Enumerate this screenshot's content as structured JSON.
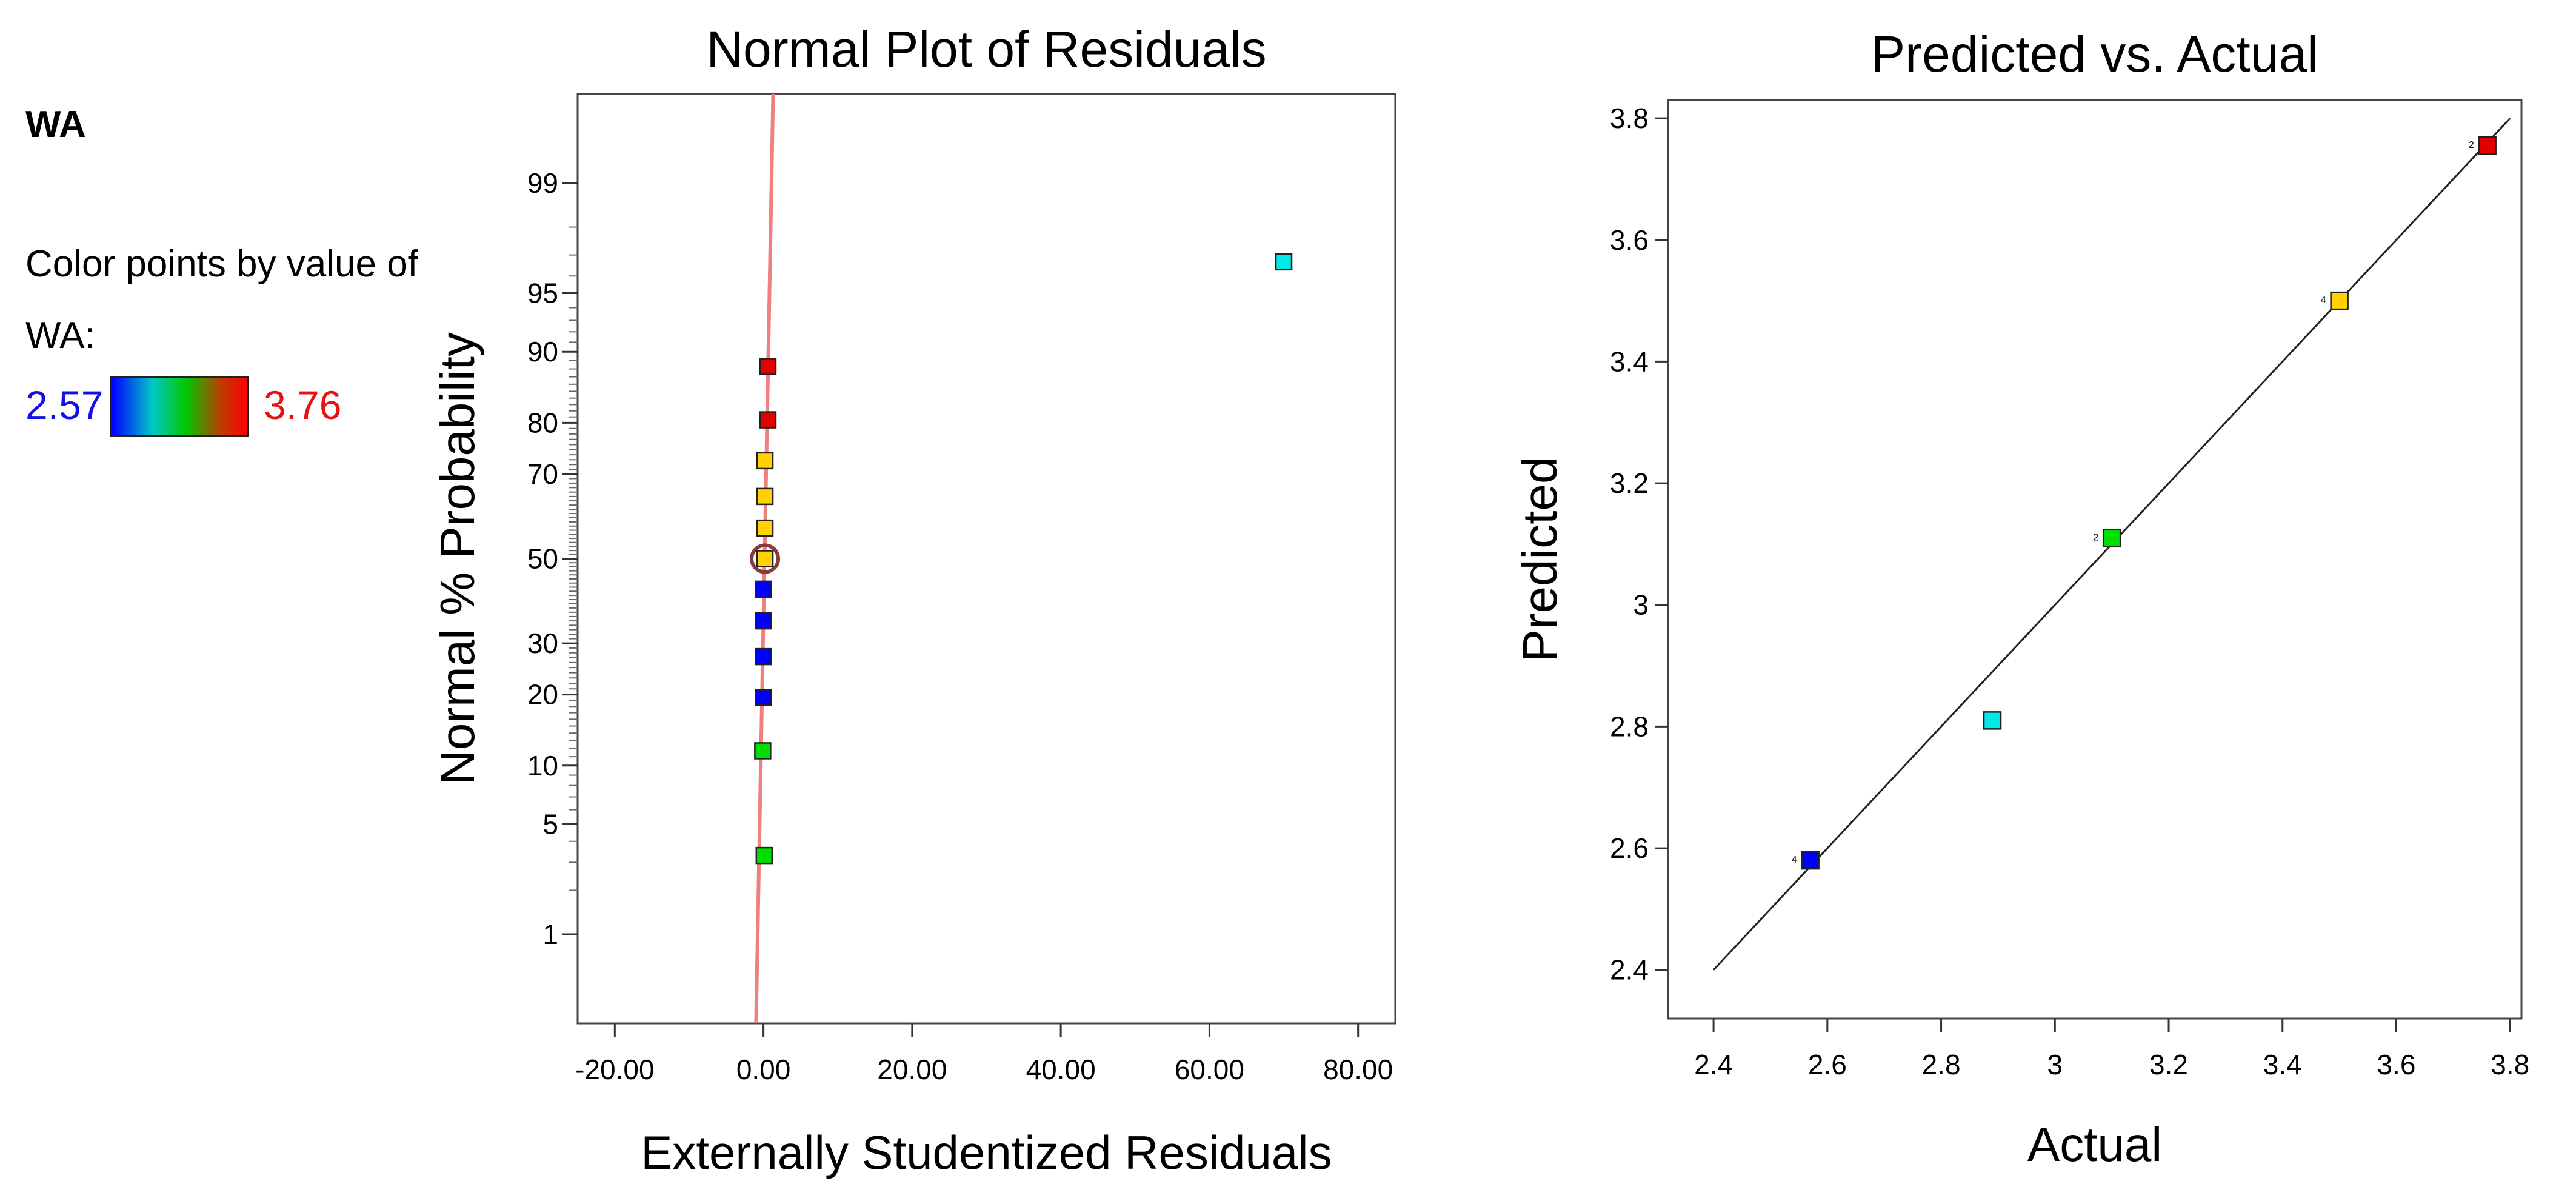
{
  "legend": {
    "title": "WA",
    "color_by_line1": "Color points by value of",
    "color_by_line2": "WA:",
    "min": "2.57",
    "max": "3.76"
  },
  "colors": {
    "blue": "#0000ff",
    "cyan": "#00e8e8",
    "green": "#00e000",
    "yellow": "#ffd200",
    "red": "#e00000",
    "fit_line": "#f08080",
    "selected_ring": "#8b3a3a"
  },
  "chart_data": [
    {
      "type": "scatter",
      "title": "Normal Plot of Residuals",
      "xlabel": "Externally Studentized Residuals",
      "ylabel": "Normal % Probability",
      "xlim": [
        -25,
        85
      ],
      "ylim_probability": [
        0.2,
        99.8
      ],
      "x_ticks": [
        "-20.00",
        "0.00",
        "20.00",
        "40.00",
        "60.00",
        "80.00"
      ],
      "x_tick_values": [
        -20,
        0,
        20,
        40,
        60,
        80
      ],
      "y_ticks": [
        "1",
        "5",
        "10",
        "20",
        "30",
        "50",
        "70",
        "80",
        "90",
        "95",
        "99"
      ],
      "y_tick_values": [
        1,
        5,
        10,
        20,
        30,
        50,
        70,
        80,
        90,
        95,
        99
      ],
      "fit_line": [
        {
          "x": -1.0,
          "p": 0.2
        },
        {
          "x": 1.3,
          "p": 99.8
        }
      ],
      "points": [
        {
          "x": 0.1,
          "p": 3.3,
          "color": "green"
        },
        {
          "x": -0.1,
          "p": 11.7,
          "color": "green"
        },
        {
          "x": 0.0,
          "p": 19.5,
          "color": "blue"
        },
        {
          "x": 0.0,
          "p": 27.2,
          "color": "blue"
        },
        {
          "x": 0.0,
          "p": 35.0,
          "color": "blue"
        },
        {
          "x": 0.0,
          "p": 42.5,
          "color": "blue"
        },
        {
          "x": 0.2,
          "p": 50.0,
          "color": "yellow",
          "selected": true
        },
        {
          "x": 0.2,
          "p": 57.5,
          "color": "yellow"
        },
        {
          "x": 0.2,
          "p": 65.0,
          "color": "yellow"
        },
        {
          "x": 0.2,
          "p": 72.8,
          "color": "yellow"
        },
        {
          "x": 0.6,
          "p": 80.5,
          "color": "red"
        },
        {
          "x": 0.6,
          "p": 88.3,
          "color": "red"
        },
        {
          "x": 70.0,
          "p": 96.7,
          "color": "cyan"
        }
      ]
    },
    {
      "type": "scatter",
      "title": "Predicted vs. Actual",
      "xlabel": "Actual",
      "ylabel": "Predicted",
      "xlim": [
        2.32,
        3.82
      ],
      "ylim": [
        2.32,
        3.83
      ],
      "x_ticks": [
        "2.4",
        "2.6",
        "2.8",
        "3",
        "3.2",
        "3.4",
        "3.6",
        "3.8"
      ],
      "x_tick_values": [
        2.4,
        2.6,
        2.8,
        3.0,
        3.2,
        3.4,
        3.6,
        3.8
      ],
      "y_ticks": [
        "2.4",
        "2.6",
        "2.8",
        "3",
        "3.2",
        "3.4",
        "3.6",
        "3.8"
      ],
      "y_tick_values": [
        2.4,
        2.6,
        2.8,
        3.0,
        3.2,
        3.4,
        3.6,
        3.8
      ],
      "reference_line": [
        [
          2.4,
          2.4
        ],
        [
          3.8,
          3.8
        ]
      ],
      "points": [
        {
          "x": 2.57,
          "y": 2.58,
          "color": "blue",
          "count": "4"
        },
        {
          "x": 2.89,
          "y": 2.81,
          "color": "cyan",
          "count": ""
        },
        {
          "x": 3.1,
          "y": 3.11,
          "color": "green",
          "count": "2"
        },
        {
          "x": 3.5,
          "y": 3.5,
          "color": "yellow",
          "count": "4"
        },
        {
          "x": 3.76,
          "y": 3.755,
          "color": "red",
          "count": "2"
        }
      ]
    }
  ]
}
